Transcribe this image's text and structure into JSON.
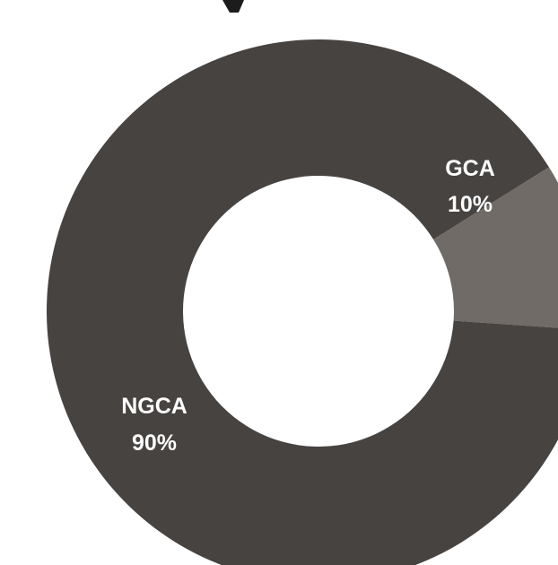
{
  "chart_data": {
    "type": "pie",
    "variant": "donut",
    "title": "",
    "legend": "none",
    "series": [
      {
        "values": [
          {
            "label": "GCA",
            "value": 10,
            "value_label": "10%",
            "color": "#706b67"
          },
          {
            "label": "NGCA",
            "value": 90,
            "value_label": "90%",
            "color": "#464341"
          }
        ]
      }
    ]
  }
}
